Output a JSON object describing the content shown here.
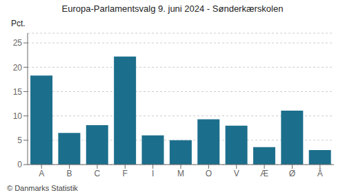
{
  "chart_data": {
    "type": "bar",
    "title": "Europa-Parlamentsvalg 9. juni 2024 - Sønderkærskolen",
    "ylabel": "Pct.",
    "footer": "© Danmarks Statistik",
    "categories": [
      "A",
      "B",
      "C",
      "F",
      "I",
      "M",
      "O",
      "V",
      "Æ",
      "Ø",
      "Å"
    ],
    "values": [
      18.3,
      6.5,
      8.1,
      22.2,
      6.0,
      5.0,
      9.3,
      8.0,
      3.6,
      11.1,
      3.0
    ],
    "color": "#1c6f8c",
    "ylim": [
      0,
      27
    ],
    "yticks": [
      0,
      5,
      10,
      15,
      20,
      25
    ],
    "grid": true
  }
}
